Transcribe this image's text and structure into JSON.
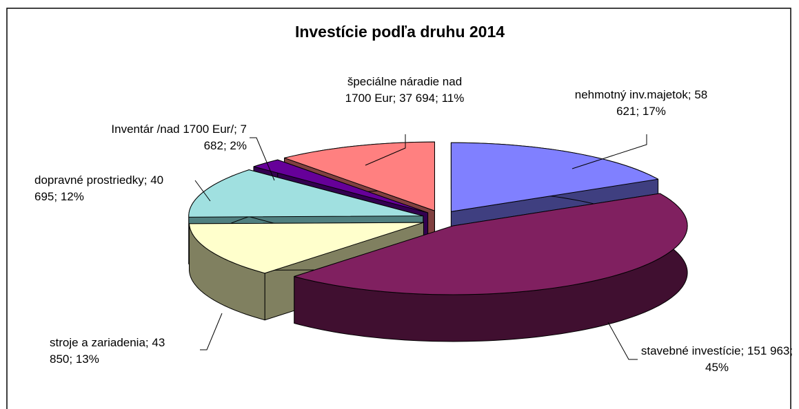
{
  "chart_data": {
    "type": "pie",
    "title": "Investície podľa druhu 2014",
    "categories": [
      "nehmotný inv.majetok",
      "stavebné investície",
      "stroje a zariadenia",
      "dopravné prostriedky",
      "Inventár /nad 1700 Eur/",
      "špeciálne náradie nad 1700 Eur"
    ],
    "values": [
      58621,
      151963,
      43850,
      40695,
      7682,
      37694
    ],
    "value_labels": [
      "58 621",
      "151 963",
      "43 850",
      "40 695",
      "7 682",
      "37 694"
    ],
    "percentages": [
      17,
      45,
      13,
      12,
      2,
      11
    ],
    "percentage_labels": [
      "17%",
      "45%",
      "13%",
      "12%",
      "2%",
      "11%"
    ],
    "colors": [
      "#8080ff",
      "#802060",
      "#ffffcc",
      "#a0e0e0",
      "#660099",
      "#ff8080"
    ],
    "side_colors": [
      "#3f3f80",
      "#400f30",
      "#808060",
      "#508080",
      "#330050",
      "#804040"
    ]
  }
}
